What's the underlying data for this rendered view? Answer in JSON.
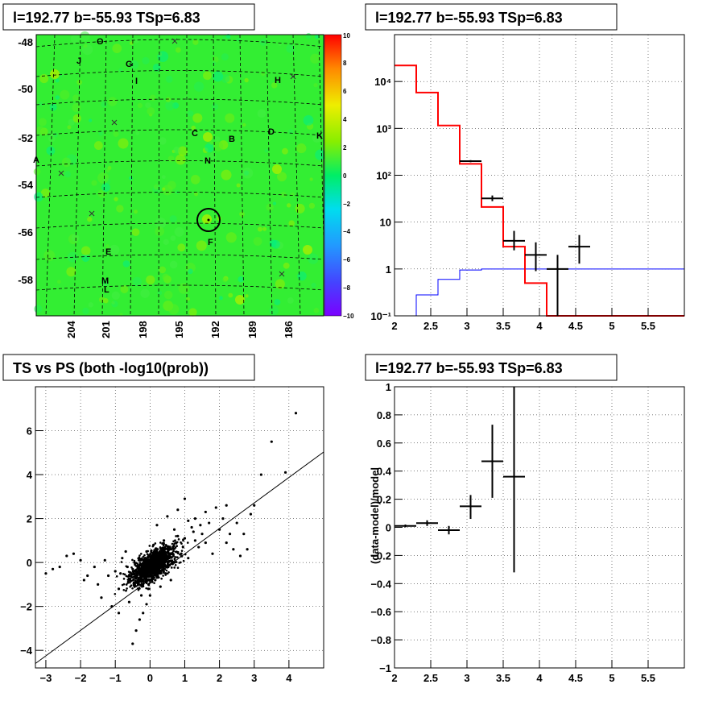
{
  "chart_data": [
    {
      "type": "heatmap",
      "title": "l=192.77 b=-55.93 TSp=6.83",
      "x_ticks": [
        "204",
        "201",
        "198",
        "195",
        "192",
        "189",
        "186"
      ],
      "y_ticks": [
        "-48",
        "-50",
        "-52",
        "-54",
        "-56",
        "-58"
      ],
      "colorbar": {
        "range": [
          -10,
          10
        ],
        "ticks": [
          "10",
          "8",
          "6",
          "4",
          "2",
          "0",
          "−2",
          "−4",
          "−6",
          "−8",
          "−10"
        ]
      },
      "source_labels": [
        "O",
        "J",
        "G",
        "I",
        "H",
        "C",
        "B",
        "D",
        "K",
        "N",
        "A",
        "F",
        "E",
        "M",
        "L"
      ],
      "colors": {
        "background": "#33ee33",
        "circle": "#000000"
      }
    },
    {
      "type": "line",
      "title": "l=192.77 b=-55.93 TSp=6.83",
      "xlim": [
        2,
        6
      ],
      "ylim": [
        0.1,
        100000
      ],
      "yscale": "log",
      "x_ticks": [
        "2",
        "2.5",
        "3",
        "3.5",
        "4",
        "4.5",
        "5",
        "5.5"
      ],
      "y_ticks": [
        "10⁻¹",
        "1",
        "10",
        "10²",
        "10³",
        "10⁴"
      ],
      "series": [
        {
          "style": "step",
          "color": "#ff0000",
          "edges": [
            2.0,
            2.3,
            2.6,
            2.9,
            3.2,
            3.5,
            3.8,
            4.1,
            4.4,
            6.0
          ],
          "values": [
            22000,
            5800,
            1150,
            175,
            21,
            3.0,
            0.5,
            0.1,
            0.1
          ]
        },
        {
          "style": "step",
          "color": "#0000ff",
          "edges": [
            2.0,
            2.3,
            2.6,
            2.9,
            3.2,
            6.0
          ],
          "values": [
            0.1,
            0.28,
            0.6,
            0.95,
            1.0
          ]
        },
        {
          "style": "errorbars",
          "color": "#000000",
          "points": [
            {
              "x": 3.05,
              "y": 200,
              "xerr": 0.15,
              "ylo": 190,
              "yhi": 210
            },
            {
              "x": 3.35,
              "y": 32,
              "xerr": 0.15,
              "ylo": 28,
              "yhi": 37
            },
            {
              "x": 3.65,
              "y": 4,
              "xerr": 0.15,
              "ylo": 2.5,
              "yhi": 6.5
            },
            {
              "x": 3.95,
              "y": 2,
              "xerr": 0.15,
              "ylo": 0.9,
              "yhi": 3.7
            },
            {
              "x": 4.25,
              "y": 1,
              "xerr": 0.15,
              "ylo": 0.1,
              "yhi": 2.0
            },
            {
              "x": 4.55,
              "y": 3,
              "xerr": 0.15,
              "ylo": 1.3,
              "yhi": 5.3
            }
          ]
        }
      ]
    },
    {
      "type": "scatter",
      "title": "TS vs PS (both -log10(prob))",
      "xlim": [
        -3.3,
        5.0
      ],
      "ylim": [
        -4.8,
        8.0
      ],
      "x_ticks": [
        "−3",
        "−2",
        "−1",
        "0",
        "1",
        "2",
        "3",
        "4"
      ],
      "y_ticks": [
        "−4",
        "−2",
        "0",
        "2",
        "4",
        "6"
      ],
      "fit_line": {
        "slope": 1.16,
        "intercept": -0.77
      },
      "points": [
        [
          -0.5,
          -0.3
        ],
        [
          -0.3,
          0.1
        ],
        [
          0.1,
          0.2
        ],
        [
          0.3,
          0.4
        ],
        [
          0.2,
          -0.5
        ],
        [
          -0.2,
          -1.0
        ],
        [
          0.4,
          1.0
        ],
        [
          0.6,
          0.6
        ],
        [
          0.8,
          1.2
        ],
        [
          1.0,
          1.1
        ],
        [
          -0.8,
          0.2
        ],
        [
          -1.0,
          -0.4
        ],
        [
          -1.2,
          -0.6
        ],
        [
          0.5,
          -0.2
        ],
        [
          1.2,
          1.6
        ],
        [
          1.5,
          1.3
        ],
        [
          1.7,
          1.8
        ],
        [
          2.0,
          1.5
        ],
        [
          2.2,
          0.9
        ],
        [
          2.4,
          0.6
        ],
        [
          -0.2,
          -2.3
        ],
        [
          -0.4,
          -3.1
        ],
        [
          -0.1,
          -1.9
        ],
        [
          0.0,
          -1.5
        ],
        [
          -1.5,
          -1.0
        ],
        [
          -1.8,
          -0.6
        ],
        [
          -2.0,
          0.1
        ],
        [
          -2.2,
          0.4
        ],
        [
          -2.6,
          -0.2
        ],
        [
          -3.0,
          -0.5
        ],
        [
          1.3,
          2.0
        ],
        [
          1.6,
          2.3
        ],
        [
          1.9,
          2.5
        ],
        [
          2.2,
          2.6
        ],
        [
          2.5,
          1.8
        ],
        [
          2.7,
          1.3
        ],
        [
          2.9,
          2.2
        ],
        [
          3.0,
          2.6
        ],
        [
          3.2,
          4.0
        ],
        [
          3.5,
          5.5
        ],
        [
          4.2,
          6.8
        ],
        [
          3.9,
          4.1
        ],
        [
          -0.6,
          -1.8
        ],
        [
          -0.9,
          -2.3
        ],
        [
          -0.5,
          -3.7
        ],
        [
          -0.3,
          -2.6
        ],
        [
          0.7,
          0.0
        ],
        [
          0.9,
          0.4
        ],
        [
          1.1,
          0.2
        ],
        [
          -0.7,
          0.5
        ],
        [
          0.3,
          -1.1
        ],
        [
          0.6,
          -0.8
        ],
        [
          -1.4,
          -1.6
        ],
        [
          -1.1,
          -2.0
        ],
        [
          2.6,
          0.3
        ],
        [
          2.8,
          0.6
        ],
        [
          1.4,
          0.7
        ],
        [
          1.8,
          0.4
        ],
        [
          0.1,
          0.8
        ],
        [
          0.2,
          1.7
        ],
        [
          0.5,
          2.1
        ],
        [
          0.8,
          2.4
        ],
        [
          1.0,
          2.9
        ],
        [
          -0.1,
          0.5
        ],
        [
          -0.3,
          -0.7
        ],
        [
          0.0,
          -0.3
        ],
        [
          0.4,
          0.1
        ],
        [
          -0.6,
          -0.6
        ],
        [
          0.7,
          1.5
        ],
        [
          1.1,
          1.9
        ],
        [
          1.3,
          1.0
        ],
        [
          1.6,
          0.9
        ],
        [
          2.1,
          2.0
        ],
        [
          2.3,
          1.3
        ],
        [
          -1.6,
          -0.2
        ],
        [
          -1.9,
          -0.8
        ],
        [
          -2.4,
          0.3
        ],
        [
          -2.8,
          -0.3
        ],
        [
          -1.3,
          0.1
        ],
        [
          -0.9,
          -1.2
        ],
        [
          0.2,
          -0.1
        ],
        [
          0.05,
          0.3
        ],
        [
          -0.15,
          -0.4
        ],
        [
          0.35,
          0.6
        ],
        [
          0.55,
          0.3
        ],
        [
          0.75,
          0.9
        ],
        [
          0.95,
          0.7
        ],
        [
          -0.45,
          0.0
        ],
        [
          -0.65,
          -0.2
        ],
        [
          -0.85,
          -0.5
        ],
        [
          1.25,
          1.4
        ],
        [
          1.45,
          1.7
        ],
        [
          0.15,
          -0.8
        ],
        [
          -0.05,
          -1.2
        ],
        [
          -0.25,
          -1.5
        ],
        [
          0.45,
          -0.5
        ]
      ],
      "colors": {
        "points": "#000000",
        "line": "#000000"
      }
    },
    {
      "type": "scatter",
      "title": "l=192.77 b=-55.93 TSp=6.83",
      "ylabel": "(data-model)/model",
      "xlim": [
        2,
        6
      ],
      "ylim": [
        -1,
        1
      ],
      "x_ticks": [
        "2",
        "2.5",
        "3",
        "3.5",
        "4",
        "4.5",
        "5",
        "5.5"
      ],
      "y_ticks": [
        "1",
        "0.8",
        "0.6",
        "0.4",
        "0.2",
        "0",
        "−0.2",
        "−0.4",
        "−0.6",
        "−0.8",
        "−1"
      ],
      "points": [
        {
          "x": 2.15,
          "y": 0.01,
          "xerr": 0.15,
          "ylo": 0.0,
          "yhi": 0.02
        },
        {
          "x": 2.45,
          "y": 0.03,
          "xerr": 0.15,
          "ylo": 0.01,
          "yhi": 0.05
        },
        {
          "x": 2.75,
          "y": -0.02,
          "xerr": 0.15,
          "ylo": -0.05,
          "yhi": 0.01
        },
        {
          "x": 3.05,
          "y": 0.15,
          "xerr": 0.15,
          "ylo": 0.06,
          "yhi": 0.23
        },
        {
          "x": 3.35,
          "y": 0.47,
          "xerr": 0.15,
          "ylo": 0.21,
          "yhi": 0.73
        },
        {
          "x": 3.65,
          "y": 0.36,
          "xerr": 0.15,
          "ylo": -0.32,
          "yhi": 1.0
        }
      ]
    }
  ]
}
